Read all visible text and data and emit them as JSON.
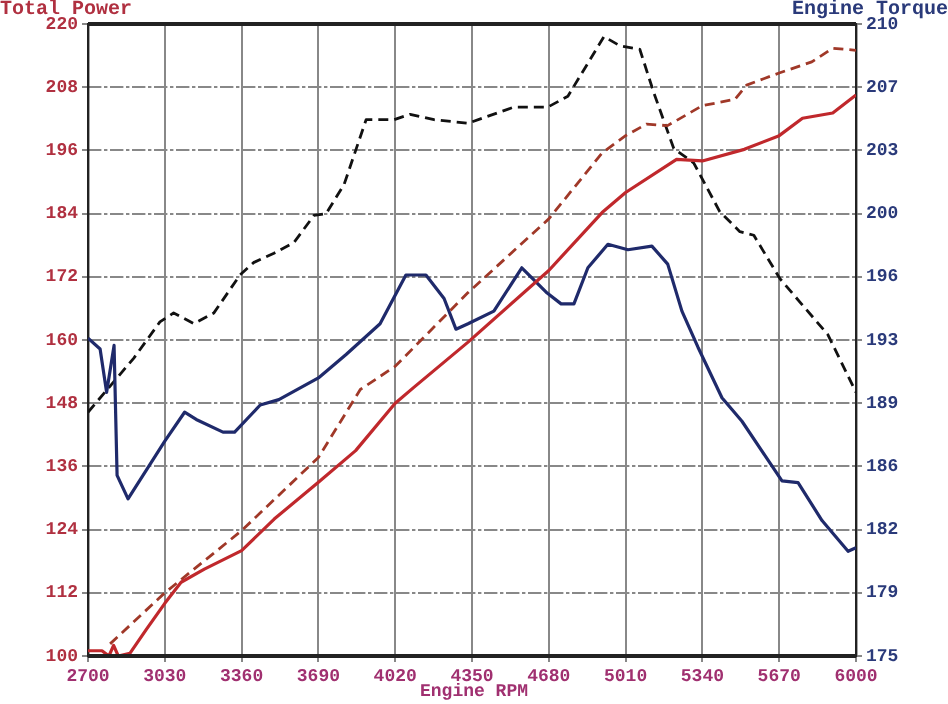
{
  "chart_data": {
    "type": "line",
    "ylabel": "Total Power",
    "y2label": "Engine Torque",
    "xlabel": "Engine RPM",
    "grid": true,
    "legend": false,
    "marker": "none",
    "xlim": [
      2700,
      6000
    ],
    "xticks": [
      2700,
      3030,
      3360,
      3690,
      4020,
      4350,
      4680,
      5010,
      5340,
      5670,
      6000
    ],
    "ylim": [
      100,
      220
    ],
    "yticks": [
      100,
      112,
      124,
      136,
      148,
      160,
      172,
      184,
      196,
      208,
      220
    ],
    "y2lim": [
      175,
      210
    ],
    "y2ticks": [
      175,
      {
        "value": 178.5,
        "label": "179"
      },
      182,
      {
        "value": 185.5,
        "label": "186"
      },
      189,
      {
        "value": 192.5,
        "label": "193"
      },
      196,
      {
        "value": 199.5,
        "label": "200"
      },
      203,
      {
        "value": 206.5,
        "label": "207"
      },
      210
    ],
    "series": [
      {
        "color": "#c0282c",
        "line_style": "solid",
        "x": [
          2700,
          2760,
          2790,
          2810,
          2830,
          2880,
          2950,
          3030,
          3100,
          3200,
          3360,
          3500,
          3690,
          3850,
          4020,
          4100,
          4333,
          4680,
          4909,
          5010,
          5229,
          5340,
          5520,
          5670,
          5770,
          5900,
          6000
        ],
        "values": [
          101,
          101,
          100,
          102,
          100,
          100.5,
          105,
          110,
          114,
          116.5,
          120,
          126,
          133,
          139,
          148,
          151,
          159.6,
          173.2,
          184.2,
          188,
          194.3,
          194,
          196.2,
          198.8,
          202.1,
          203.1,
          206.5
        ]
      },
      {
        "color": "#a03828",
        "line_style": "dashed",
        "x": [
          2795,
          3030,
          3360,
          3690,
          3870,
          4020,
          4333,
          4680,
          4909,
          5010,
          5100,
          5190,
          5340,
          5480,
          5530,
          5670,
          5810,
          5900,
          6000
        ],
        "values": [
          102.3,
          112,
          123.8,
          137.7,
          150.6,
          155,
          169,
          183,
          195.5,
          198.8,
          201,
          200.7,
          204.5,
          205.7,
          208.4,
          210.7,
          212.8,
          215.4,
          215
        ]
      },
      {
        "color": "#1f2a6b",
        "line_style": "solid",
        "axis": "y2",
        "x": [
          2700,
          2752,
          2780,
          2812,
          2825,
          2872,
          3030,
          3115,
          3165,
          3280,
          3330,
          3440,
          3520,
          3690,
          3809,
          3955,
          4066,
          4152,
          4230,
          4281,
          4333,
          4444,
          4564,
          4673,
          4733,
          4788,
          4848,
          4934,
          5020,
          5123,
          5191,
          5252,
          5321,
          5424,
          5510,
          5682,
          5751,
          5854,
          5966,
          6000
        ],
        "values": [
          192.6,
          192,
          189.6,
          192.2,
          185,
          183.7,
          186.9,
          188.5,
          188.1,
          187.4,
          187.4,
          188.9,
          189.2,
          190.4,
          191.7,
          193.4,
          196.1,
          196.1,
          194.8,
          193.1,
          193.4,
          194.1,
          196.5,
          195.1,
          194.5,
          194.5,
          196.5,
          197.8,
          197.5,
          197.7,
          196.7,
          194.1,
          192.1,
          189.3,
          188,
          184.7,
          184.6,
          182.5,
          180.8,
          181
        ]
      },
      {
        "color": "#111111",
        "line_style": "dashed",
        "axis": "y2",
        "x": [
          2700,
          2897,
          3009,
          3068,
          3155,
          3241,
          3353,
          3413,
          3499,
          3585,
          3671,
          3723,
          3800,
          3895,
          4015,
          4084,
          4187,
          4333,
          4530,
          4676,
          4762,
          4917,
          4985,
          5071,
          5131,
          5217,
          5303,
          5415,
          5501,
          5561,
          5673,
          5759,
          5879,
          6000
        ],
        "values": [
          188.5,
          191.5,
          193.5,
          194,
          193.4,
          194,
          196.1,
          196.8,
          197.3,
          197.9,
          199.4,
          199.5,
          201.1,
          204.7,
          204.7,
          205,
          204.7,
          204.5,
          205.4,
          205.4,
          206,
          209.3,
          208.8,
          208.6,
          206.2,
          203.1,
          202.3,
          199.6,
          198.5,
          198.3,
          195.9,
          194.6,
          192.8,
          189.6
        ]
      }
    ]
  }
}
